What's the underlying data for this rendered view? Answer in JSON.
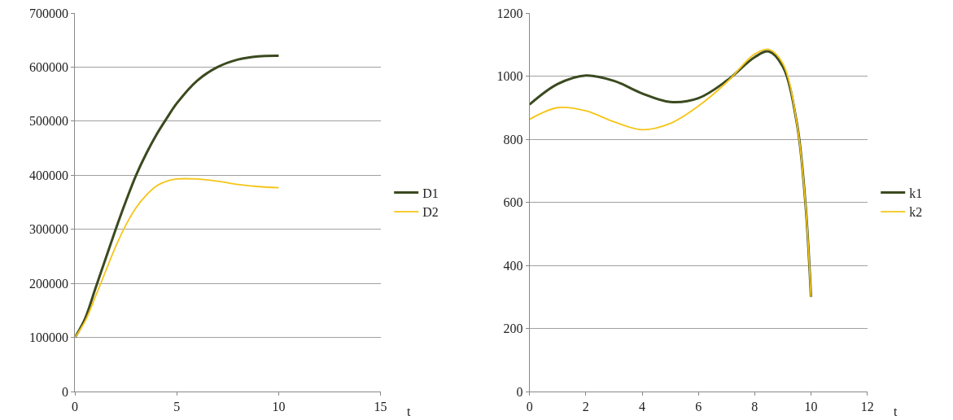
{
  "chart_data": [
    {
      "type": "line",
      "xlabel": "t",
      "xlim": [
        0,
        15
      ],
      "xticks": [
        0,
        5,
        10,
        15
      ],
      "ylim": [
        0,
        700000
      ],
      "yticks": [
        0,
        100000,
        200000,
        300000,
        400000,
        500000,
        600000,
        700000
      ],
      "grid": "y",
      "legend": "right",
      "marker": "none",
      "line_style": "solid",
      "x": [
        0,
        0.5,
        1,
        1.5,
        2,
        2.5,
        3,
        3.5,
        4,
        4.5,
        5,
        6,
        7,
        8,
        9,
        10
      ],
      "series": [
        {
          "name": "D1",
          "color": "#3b4a1f",
          "values": [
            100000,
            135000,
            190000,
            245000,
            300000,
            352000,
            400000,
            440000,
            475000,
            505000,
            533000,
            575000,
            600000,
            614000,
            620000,
            621000
          ]
        },
        {
          "name": "D2",
          "color": "#f5c518",
          "values": [
            100000,
            130000,
            175000,
            222000,
            268000,
            308000,
            340000,
            363000,
            380000,
            389000,
            393000,
            393000,
            389000,
            383000,
            379000,
            377000
          ]
        }
      ]
    },
    {
      "type": "line",
      "xlabel": "t",
      "xlim": [
        0,
        12
      ],
      "xticks": [
        0,
        2,
        4,
        6,
        8,
        10,
        12
      ],
      "ylim": [
        0,
        1200
      ],
      "yticks": [
        0,
        200,
        400,
        600,
        800,
        1000,
        1200
      ],
      "grid": "y",
      "legend": "right",
      "marker": "none",
      "line_style": "solid",
      "x": [
        0,
        1,
        2,
        3,
        4,
        5,
        6,
        7,
        8,
        8.5,
        9,
        9.5,
        9.8,
        10
      ],
      "series": [
        {
          "name": "k1",
          "color": "#3b4a1f",
          "values": [
            910,
            975,
            1002,
            985,
            945,
            918,
            930,
            985,
            1060,
            1078,
            1030,
            850,
            600,
            300
          ]
        },
        {
          "name": "k2",
          "color": "#f5c518",
          "values": [
            863,
            900,
            890,
            855,
            830,
            850,
            905,
            980,
            1070,
            1085,
            1040,
            850,
            600,
            300
          ]
        }
      ]
    }
  ]
}
